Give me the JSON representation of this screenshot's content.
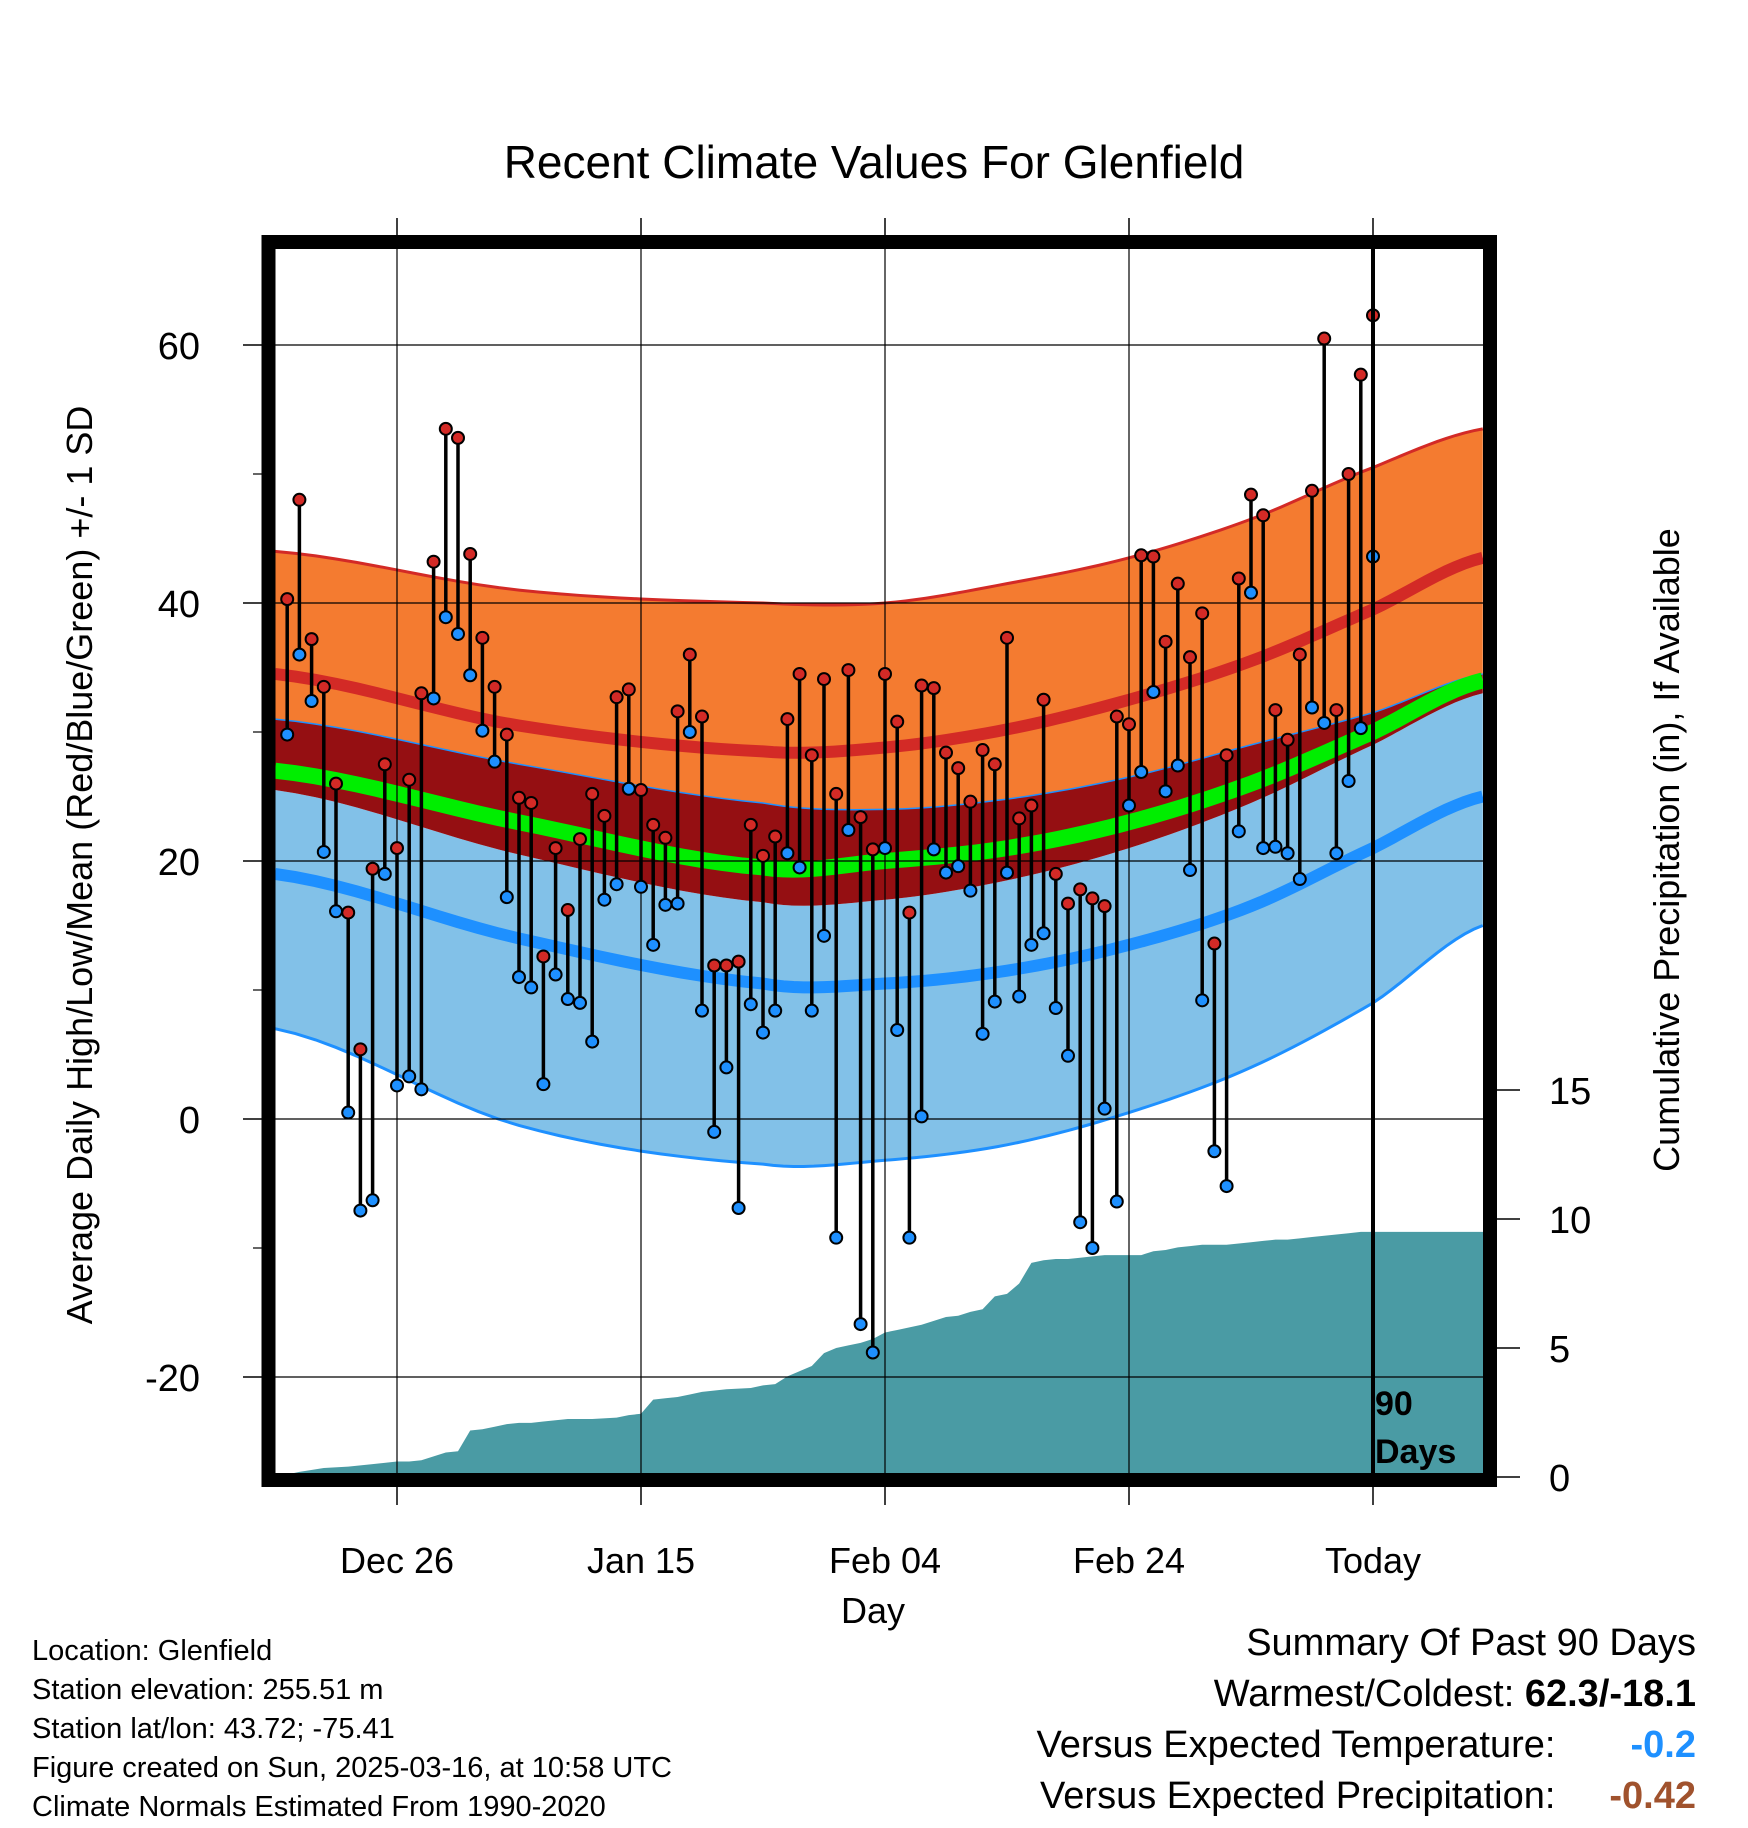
{
  "title": "Recent Climate Values For Glenfield",
  "y_left_label": "Average Daily High/Low/Mean (Red/Blue/Green) +/- 1 SD",
  "y_right_label": "Cumulative Precipitation (in), If Available",
  "x_label": "Day",
  "days_label_line1": "90",
  "days_label_line2": "Days",
  "info": {
    "location": "Location: Glenfield",
    "elevation": "Station elevation: 255.51 m",
    "latlon": "Station lat/lon: 43.72; -75.41",
    "created": "Figure created on Sun, 2025-03-16, at 10:58 UTC",
    "normals": "Climate Normals Estimated From 1990-2020"
  },
  "summary": {
    "heading": "Summary Of Past 90 Days",
    "warm_cold_label": "Warmest/Coldest:",
    "warm_cold_value": "62.3/-18.1",
    "temp_label": "Versus Expected Temperature:",
    "temp_value": "-0.2",
    "temp_color": "#1e90ff",
    "precip_label": "Versus Expected Precipitation:",
    "precip_value": "-0.42",
    "precip_color": "#a0522d"
  },
  "chart_data": {
    "type": "line",
    "x_start_day": -90,
    "x_end_day": 9,
    "y_left_range": [
      -28,
      68
    ],
    "y_left_ticks": [
      -20,
      0,
      20,
      40,
      60
    ],
    "y_right_ticks": [
      0,
      5,
      10,
      15
    ],
    "y_right_scale_in_per_temp_unit": 0.5,
    "x_ticks": [
      {
        "day": -80,
        "label": "Dec 26"
      },
      {
        "day": -60,
        "label": "Jan 15"
      },
      {
        "day": -40,
        "label": "Feb 04"
      },
      {
        "day": -20,
        "label": "Feb 24"
      },
      {
        "day": 0,
        "label": "Today"
      }
    ],
    "colors": {
      "high_band": "#f47b30",
      "high_line": "#d32a26",
      "mean_band": "#950f12",
      "mean_line": "#00ee00",
      "low_band": "#82c1e8",
      "low_line": "#1e90ff",
      "precip": "#4a9ba4",
      "high_dot": "#d32a26",
      "low_dot": "#1e90ff"
    },
    "normals": {
      "days": [
        -90,
        -70,
        -50,
        -40,
        -30,
        -20,
        -10,
        0,
        9
      ],
      "high_mean": [
        34.5,
        30.5,
        28.5,
        28.8,
        30.2,
        32.5,
        35.5,
        39.5,
        43.5
      ],
      "high_sd_upper": [
        44,
        41,
        40,
        40,
        41.5,
        43.5,
        46.5,
        50.5,
        53.5
      ],
      "low_mean": [
        19,
        14,
        10.5,
        10.5,
        11.5,
        13.5,
        16.5,
        21,
        25
      ],
      "low_sd_lower": [
        7,
        -0.5,
        -3.5,
        -3.2,
        -2,
        0.5,
        4,
        9,
        15
      ],
      "mean_lower": [
        25.5,
        20.5,
        16.8,
        17,
        18.5,
        21,
        24.5,
        29,
        33
      ],
      "mean_upper": [
        31,
        27.5,
        24.5,
        24,
        24.8,
        26.5,
        29,
        31.5,
        34.5
      ],
      "mean_line": [
        27,
        23,
        19.5,
        20,
        21,
        23,
        26,
        30,
        34
      ]
    },
    "series": [
      {
        "name": "High",
        "values": [
          40.3,
          48.0,
          37.2,
          33.5,
          26.0,
          16.0,
          5.4,
          19.4,
          27.5,
          21.0,
          26.3,
          33.0,
          43.2,
          53.5,
          52.8,
          43.8,
          37.3,
          33.5,
          29.8,
          24.9,
          24.5,
          12.6,
          21.0,
          16.2,
          21.7,
          25.2,
          23.5,
          32.7,
          33.3,
          25.5,
          22.8,
          21.8,
          31.6,
          36.0,
          31.2,
          11.9,
          11.9,
          12.2,
          22.8,
          20.4,
          21.9,
          31.0,
          34.5,
          28.2,
          34.1,
          25.2,
          34.8,
          23.4,
          20.9,
          34.5,
          30.8,
          16.0,
          33.6,
          33.4,
          28.4,
          27.2,
          24.6,
          28.6,
          27.5,
          37.3,
          23.3,
          24.3,
          32.5,
          19.0,
          16.7,
          17.8,
          17.1,
          16.5,
          31.2,
          30.6,
          43.7,
          43.6,
          37.0,
          41.5,
          35.8,
          39.2,
          13.6,
          28.2,
          41.9,
          48.4,
          46.8,
          31.7,
          29.4,
          36.0,
          48.7,
          60.5,
          31.7,
          50.0,
          57.7,
          62.3
        ],
        "lows": [
          29.8,
          36.0,
          32.4,
          20.7,
          16.1,
          0.5,
          -7.1,
          -6.3,
          19.0,
          2.6,
          3.3,
          2.3,
          32.6,
          38.9,
          37.6,
          34.4,
          30.1,
          27.7,
          17.2,
          11.0,
          10.2,
          2.7,
          11.2,
          9.3,
          9.0,
          6.0,
          17.0,
          18.2,
          25.6,
          18.0,
          13.5,
          16.6,
          16.7,
          30.0,
          8.4,
          -1.0,
          4.0,
          -6.9,
          8.9,
          6.7,
          8.4,
          20.6,
          19.5,
          8.4,
          14.2,
          -9.2,
          22.4,
          -15.9,
          -18.1,
          21.0,
          6.9,
          -9.2,
          0.2,
          20.9,
          19.1,
          19.6,
          17.7,
          6.6,
          9.1,
          19.1,
          9.5,
          13.5,
          14.4,
          8.6,
          4.9,
          -8.0,
          -10.0,
          0.8,
          -6.4,
          24.3,
          26.9,
          33.1,
          25.4,
          27.4,
          19.3,
          9.2,
          -2.5,
          -5.2,
          22.3,
          40.8,
          21.0,
          21.1,
          20.6,
          18.6,
          31.9,
          30.7,
          20.6,
          26.2,
          30.3,
          43.6
        ]
      }
    ],
    "precip_cumulative": {
      "days": [
        -90,
        -88,
        -86,
        -84,
        -83,
        -82,
        -80,
        -79,
        -78,
        -77,
        -76,
        -75,
        -74,
        -73,
        -72,
        -71,
        -70,
        -69,
        -68,
        -67,
        -66,
        -64,
        -62,
        -61,
        -60,
        -59,
        -58,
        -57,
        -56,
        -55,
        -53,
        -51,
        -50,
        -49,
        -48,
        -46,
        -45,
        -44,
        -43,
        -42,
        -41,
        -40,
        -39,
        -38,
        -37,
        -36,
        -35,
        -34,
        -33,
        -32,
        -31,
        -30,
        -29,
        -28,
        -27,
        -26,
        -25,
        -24,
        -23,
        -22,
        -21,
        -20,
        -19,
        -18,
        -17,
        -16,
        -15,
        -14,
        -13,
        -12,
        -11,
        -10,
        -9,
        -8,
        -7,
        -6,
        -5,
        -4,
        -3,
        -2,
        -1,
        0,
        9
      ],
      "values": [
        0.0,
        0.2,
        0.35,
        0.4,
        0.45,
        0.5,
        0.6,
        0.6,
        0.65,
        0.8,
        0.95,
        1.0,
        1.8,
        1.85,
        1.95,
        2.05,
        2.1,
        2.1,
        2.15,
        2.2,
        2.25,
        2.25,
        2.3,
        2.4,
        2.45,
        3.0,
        3.05,
        3.1,
        3.2,
        3.3,
        3.4,
        3.45,
        3.55,
        3.6,
        3.9,
        4.3,
        4.8,
        5.0,
        5.1,
        5.2,
        5.35,
        5.6,
        5.7,
        5.8,
        5.9,
        6.05,
        6.2,
        6.25,
        6.4,
        6.5,
        7.0,
        7.1,
        7.5,
        8.3,
        8.4,
        8.45,
        8.45,
        8.5,
        8.55,
        8.6,
        8.6,
        8.6,
        8.6,
        8.75,
        8.8,
        8.9,
        8.95,
        9.0,
        9.0,
        9.0,
        9.05,
        9.1,
        9.15,
        9.2,
        9.2,
        9.25,
        9.3,
        9.35,
        9.4,
        9.45,
        9.5,
        9.5,
        9.5
      ]
    }
  }
}
